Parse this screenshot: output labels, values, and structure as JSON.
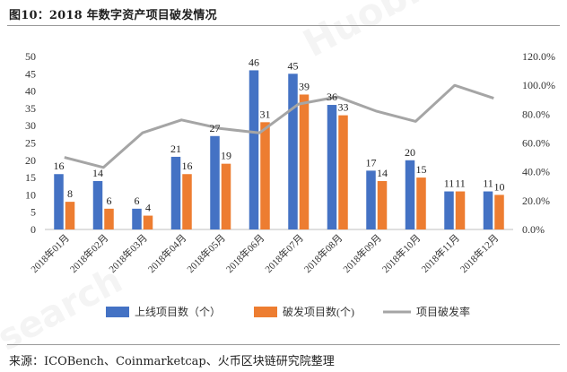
{
  "header": {
    "title": "图10：2018 年数字资产项目破发情况"
  },
  "footer": {
    "source": "来源：ICOBench、Coinmarketcap、火币区块链研究院整理"
  },
  "watermarks": [
    "Huobi Research",
    "search"
  ],
  "chart_data": {
    "type": "bar",
    "categories": [
      "2018年01月",
      "2018年02月",
      "2018年03月",
      "2018年04月",
      "2018年05月",
      "2018年06月",
      "2018年07月",
      "2018年08月",
      "2018年09月",
      "2018年10月",
      "2018年11月",
      "2018年12月"
    ],
    "series": [
      {
        "name": "上线项目数（个）",
        "type": "bar",
        "axis": "left",
        "color": "#4472C4",
        "values": [
          16,
          14,
          6,
          21,
          27,
          46,
          45,
          36,
          17,
          20,
          11,
          11
        ]
      },
      {
        "name": "破发项目数(个)",
        "type": "bar",
        "axis": "left",
        "color": "#ED7D31",
        "values": [
          8,
          6,
          4,
          16,
          19,
          31,
          39,
          33,
          14,
          15,
          11,
          10
        ]
      },
      {
        "name": "项目破发率",
        "type": "line",
        "axis": "right",
        "color": "#A5A5A5",
        "values": [
          0.5,
          0.43,
          0.67,
          0.76,
          0.7,
          0.67,
          0.87,
          0.92,
          0.82,
          0.75,
          1.0,
          0.91
        ]
      }
    ],
    "ylim_left": [
      0,
      50
    ],
    "yticks_left": [
      "0",
      "5",
      "10",
      "15",
      "20",
      "25",
      "30",
      "35",
      "40",
      "45",
      "50"
    ],
    "ylim_right": [
      0,
      1.2
    ],
    "yticks_right": [
      "0.0%",
      "20.0%",
      "40.0%",
      "60.0%",
      "80.0%",
      "100.0%",
      "120.0%"
    ],
    "data_labels": true,
    "grid": false,
    "legend_position": "bottom"
  }
}
